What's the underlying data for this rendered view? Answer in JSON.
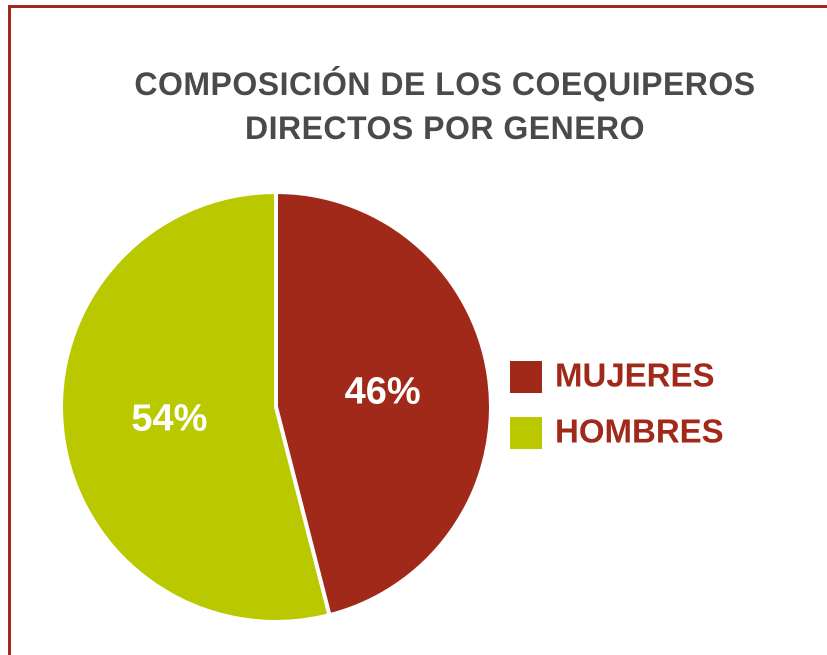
{
  "chart_data": {
    "type": "pie",
    "title": "COMPOSICIÓN DE LOS COEQUIPEROS DIRECTOS POR GENERO",
    "categories": [
      "MUJERES",
      "HOMBRES"
    ],
    "values": [
      46,
      54
    ],
    "value_labels": [
      "46%",
      "54%"
    ],
    "colors": [
      "#a0291a",
      "#bac800"
    ],
    "legend": "right"
  }
}
